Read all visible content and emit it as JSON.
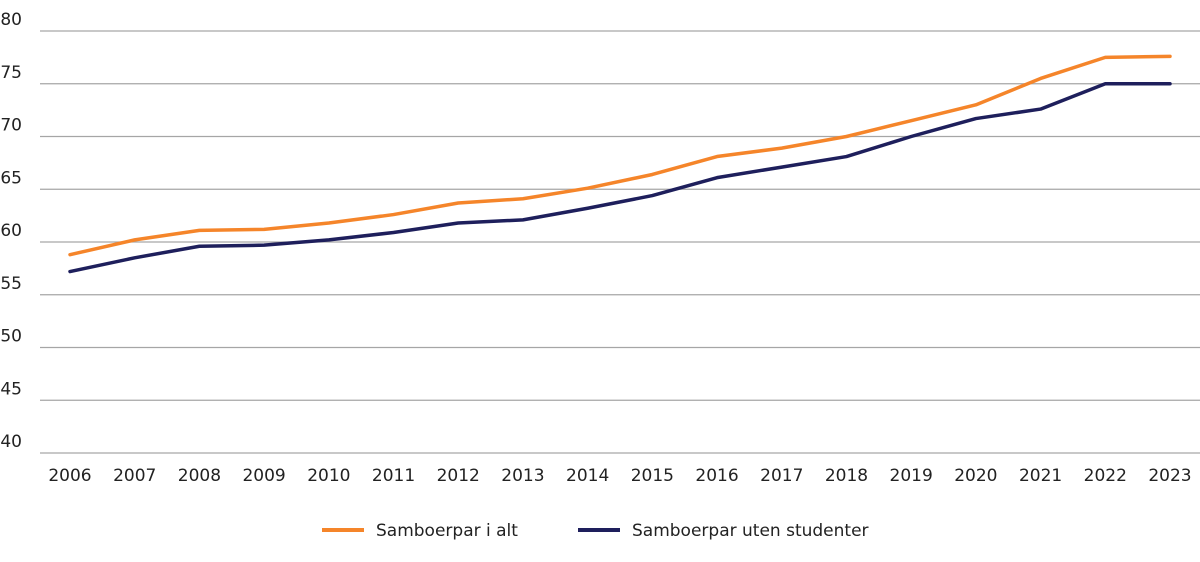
{
  "chart_data": {
    "type": "line",
    "title": "",
    "xlabel": "",
    "ylabel": "",
    "ylim": [
      40,
      80
    ],
    "yticks": [
      40,
      45,
      50,
      55,
      60,
      65,
      70,
      75,
      80
    ],
    "grid": true,
    "legend_position": "bottom",
    "x": [
      "2006",
      "2007",
      "2008",
      "2009",
      "2010",
      "2011",
      "2012",
      "2013",
      "2014",
      "2015",
      "2016",
      "2017",
      "2018",
      "2019",
      "2020",
      "2021",
      "2022",
      "2023"
    ],
    "series": [
      {
        "name": "Samboerpar i alt",
        "color": "#f5852a",
        "values": [
          58.8,
          60.2,
          61.1,
          61.2,
          61.8,
          62.6,
          63.7,
          64.1,
          65.1,
          66.4,
          68.1,
          68.9,
          70.0,
          71.5,
          73.0,
          75.5,
          77.5,
          77.6
        ]
      },
      {
        "name": "Samboerpar uten studenter",
        "color": "#1e1f5c",
        "values": [
          57.2,
          58.5,
          59.6,
          59.7,
          60.2,
          60.9,
          61.8,
          62.1,
          63.2,
          64.4,
          66.1,
          67.1,
          68.1,
          70.0,
          71.7,
          72.6,
          75.0,
          75.0
        ]
      }
    ]
  }
}
